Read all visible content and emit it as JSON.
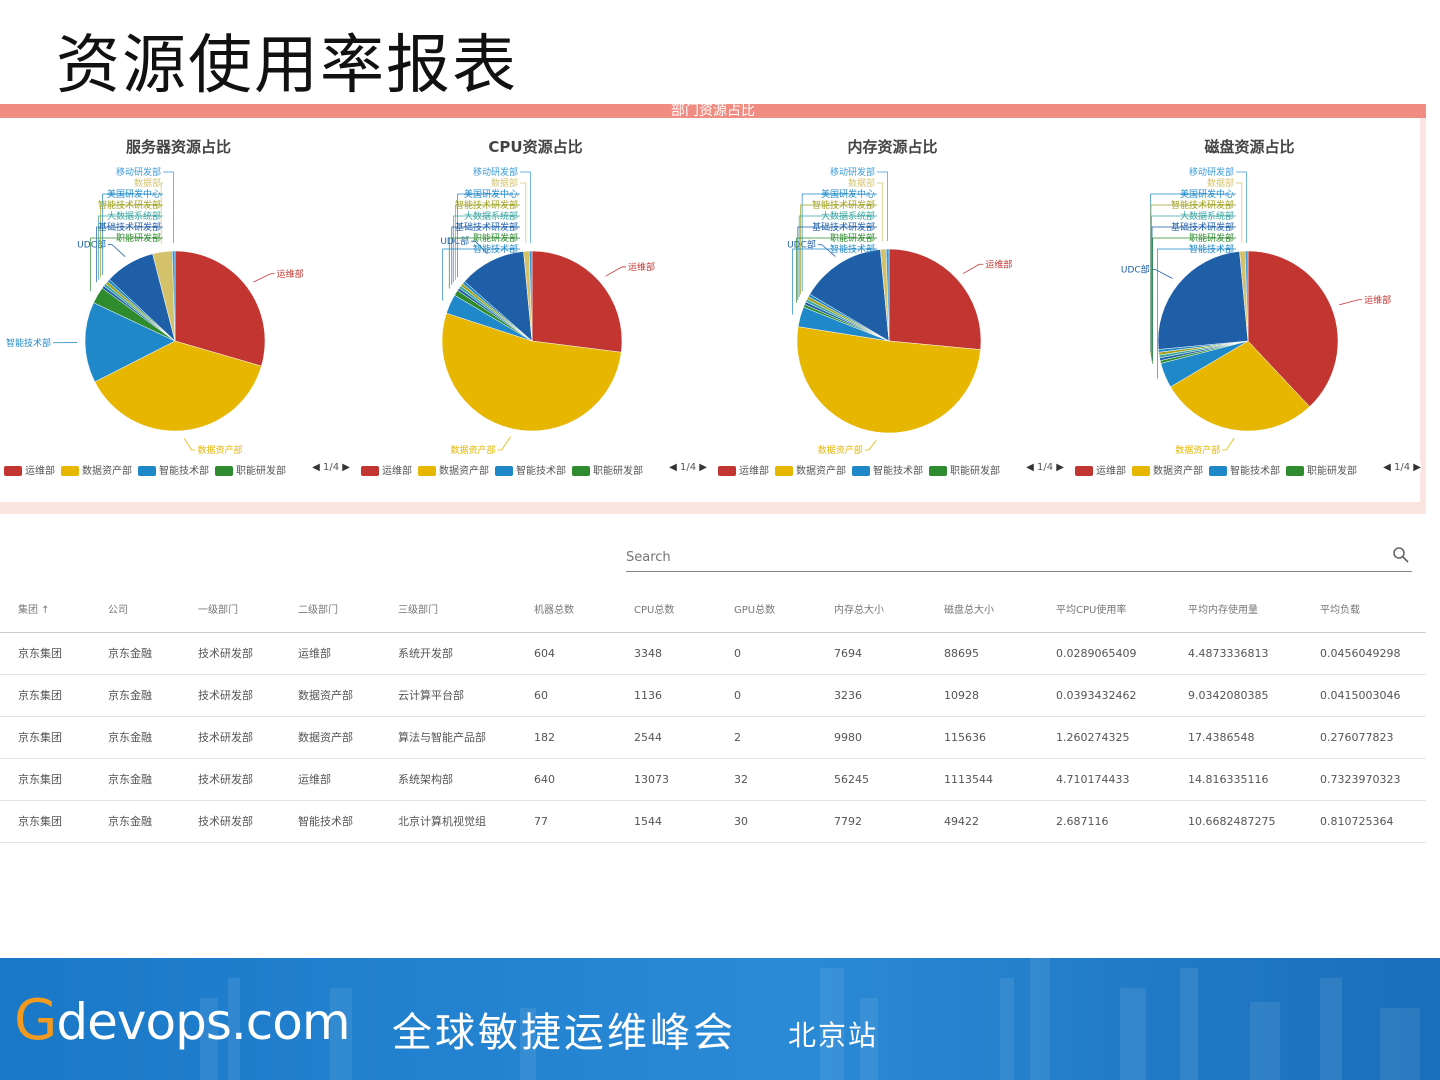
{
  "page": {
    "title": "资源使用率报表"
  },
  "panel": {
    "header": "部门资源占比"
  },
  "colors": {
    "red": "#c23531",
    "yellow": "#e6b600",
    "blue": "#1e88c8",
    "green": "#2e8b2e",
    "navy": "#1f5fa8",
    "teal": "#3aa6a0",
    "olive": "#a0a020"
  },
  "charts": [
    {
      "title": "服务器资源占比",
      "slices": [
        {
          "name": "运维部",
          "value": 29.5,
          "color": "#c23531"
        },
        {
          "name": "数据资产部",
          "value": 38.0,
          "color": "#e6b600"
        },
        {
          "name": "智能技术部",
          "value": 14.5,
          "color": "#1e88c8"
        },
        {
          "name": "职能研发部",
          "value": 3.0,
          "color": "#2e8b2e"
        },
        {
          "name": "基础技术研发部",
          "value": 0.5,
          "color": "#1f5fa8"
        },
        {
          "name": "大数据系统部",
          "value": 0.5,
          "color": "#3aa6a0"
        },
        {
          "name": "智能技术研发部",
          "value": 0.5,
          "color": "#a0a020"
        },
        {
          "name": "美国研发中心",
          "value": 0.5,
          "color": "#1e88c8"
        },
        {
          "name": "UDC部",
          "value": 9.0,
          "color": "#1f5fa8"
        },
        {
          "name": "数据部",
          "value": 3.5,
          "color": "#d4c26a"
        },
        {
          "name": "移动研发部",
          "value": 0.5,
          "color": "#3a9ad9"
        }
      ]
    },
    {
      "title": "CPU资源占比",
      "slices": [
        {
          "name": "运维部",
          "value": 27.0,
          "color": "#c23531"
        },
        {
          "name": "数据资产部",
          "value": 53.0,
          "color": "#e6b600"
        },
        {
          "name": "智能技术部",
          "value": 3.5,
          "color": "#1e88c8"
        },
        {
          "name": "职能研发部",
          "value": 1.0,
          "color": "#2e8b2e"
        },
        {
          "name": "基础技术研发部",
          "value": 0.5,
          "color": "#1f5fa8"
        },
        {
          "name": "大数据系统部",
          "value": 0.5,
          "color": "#3aa6a0"
        },
        {
          "name": "智能技术研发部",
          "value": 0.5,
          "color": "#a0a020"
        },
        {
          "name": "美国研发中心",
          "value": 0.5,
          "color": "#1e88c8"
        },
        {
          "name": "UDC部",
          "value": 12.0,
          "color": "#1f5fa8"
        },
        {
          "name": "数据部",
          "value": 1.0,
          "color": "#d4c26a"
        },
        {
          "name": "移动研发部",
          "value": 0.5,
          "color": "#3a9ad9"
        }
      ]
    },
    {
      "title": "内存资源占比",
      "slices": [
        {
          "name": "运维部",
          "value": 26.5,
          "color": "#c23531"
        },
        {
          "name": "数据资产部",
          "value": 51.0,
          "color": "#e6b600"
        },
        {
          "name": "智能技术部",
          "value": 3.5,
          "color": "#1e88c8"
        },
        {
          "name": "职能研发部",
          "value": 0.5,
          "color": "#2e8b2e"
        },
        {
          "name": "基础技术研发部",
          "value": 0.5,
          "color": "#1f5fa8"
        },
        {
          "name": "大数据系统部",
          "value": 0.5,
          "color": "#3aa6a0"
        },
        {
          "name": "智能技术研发部",
          "value": 0.5,
          "color": "#a0a020"
        },
        {
          "name": "美国研发中心",
          "value": 0.5,
          "color": "#1e88c8"
        },
        {
          "name": "UDC部",
          "value": 15.0,
          "color": "#1f5fa8"
        },
        {
          "name": "数据部",
          "value": 1.0,
          "color": "#d4c26a"
        },
        {
          "name": "移动研发部",
          "value": 0.5,
          "color": "#3a9ad9"
        }
      ]
    },
    {
      "title": "磁盘资源占比",
      "slices": [
        {
          "name": "运维部",
          "value": 38.0,
          "color": "#c23531"
        },
        {
          "name": "数据资产部",
          "value": 28.5,
          "color": "#e6b600"
        },
        {
          "name": "智能技术部",
          "value": 4.5,
          "color": "#1e88c8"
        },
        {
          "name": "职能研发部",
          "value": 0.5,
          "color": "#2e8b2e"
        },
        {
          "name": "基础技术研发部",
          "value": 0.5,
          "color": "#1f5fa8"
        },
        {
          "name": "大数据系统部",
          "value": 0.5,
          "color": "#3aa6a0"
        },
        {
          "name": "智能技术研发部",
          "value": 0.5,
          "color": "#a0a020"
        },
        {
          "name": "美国研发中心",
          "value": 0.5,
          "color": "#1e88c8"
        },
        {
          "name": "UDC部",
          "value": 25.0,
          "color": "#1f5fa8"
        },
        {
          "name": "数据部",
          "value": 1.0,
          "color": "#d4c26a"
        },
        {
          "name": "移动研发部",
          "value": 0.5,
          "color": "#3a9ad9"
        }
      ]
    }
  ],
  "legend": {
    "items": [
      {
        "name": "运维部",
        "color": "#c23531"
      },
      {
        "name": "数据资产部",
        "color": "#e6b600"
      },
      {
        "name": "智能技术部",
        "color": "#1e88c8"
      },
      {
        "name": "职能研发部",
        "color": "#2e8b2e"
      }
    ],
    "page": "1/4"
  },
  "search": {
    "placeholder": "Search"
  },
  "table": {
    "headers": [
      "集团 ↑",
      "公司",
      "一级部门",
      "二级部门",
      "三级部门",
      "机器总数",
      "CPU总数",
      "GPU总数",
      "内存总大小",
      "磁盘总大小",
      "平均CPU使用率",
      "平均内存使用量",
      "平均负载"
    ],
    "rows": [
      [
        "京东集团",
        "京东金融",
        "技术研发部",
        "运维部",
        "系统开发部",
        "604",
        "3348",
        "0",
        "7694",
        "88695",
        "0.0289065409",
        "4.4873336813",
        "0.0456049298"
      ],
      [
        "京东集团",
        "京东金融",
        "技术研发部",
        "数据资产部",
        "云计算平台部",
        "60",
        "1136",
        "0",
        "3236",
        "10928",
        "0.0393432462",
        "9.0342080385",
        "0.0415003046"
      ],
      [
        "京东集团",
        "京东金融",
        "技术研发部",
        "数据资产部",
        "算法与智能产品部",
        "182",
        "2544",
        "2",
        "9980",
        "115636",
        "1.260274325",
        "17.4386548",
        "0.276077823"
      ],
      [
        "京东集团",
        "京东金融",
        "技术研发部",
        "运维部",
        "系统架构部",
        "640",
        "13073",
        "32",
        "56245",
        "1113544",
        "4.710174433",
        "14.816335116",
        "0.7323970323"
      ],
      [
        "京东集团",
        "京东金融",
        "技术研发部",
        "智能技术部",
        "北京计算机视觉组",
        "77",
        "1544",
        "30",
        "7792",
        "49422",
        "2.687116",
        "10.6682487275",
        "0.810725364"
      ]
    ]
  },
  "footer": {
    "brand_g": "G",
    "brand_rest": "devops.com",
    "event": "全球敏捷运维峰会",
    "city": "北京站"
  }
}
